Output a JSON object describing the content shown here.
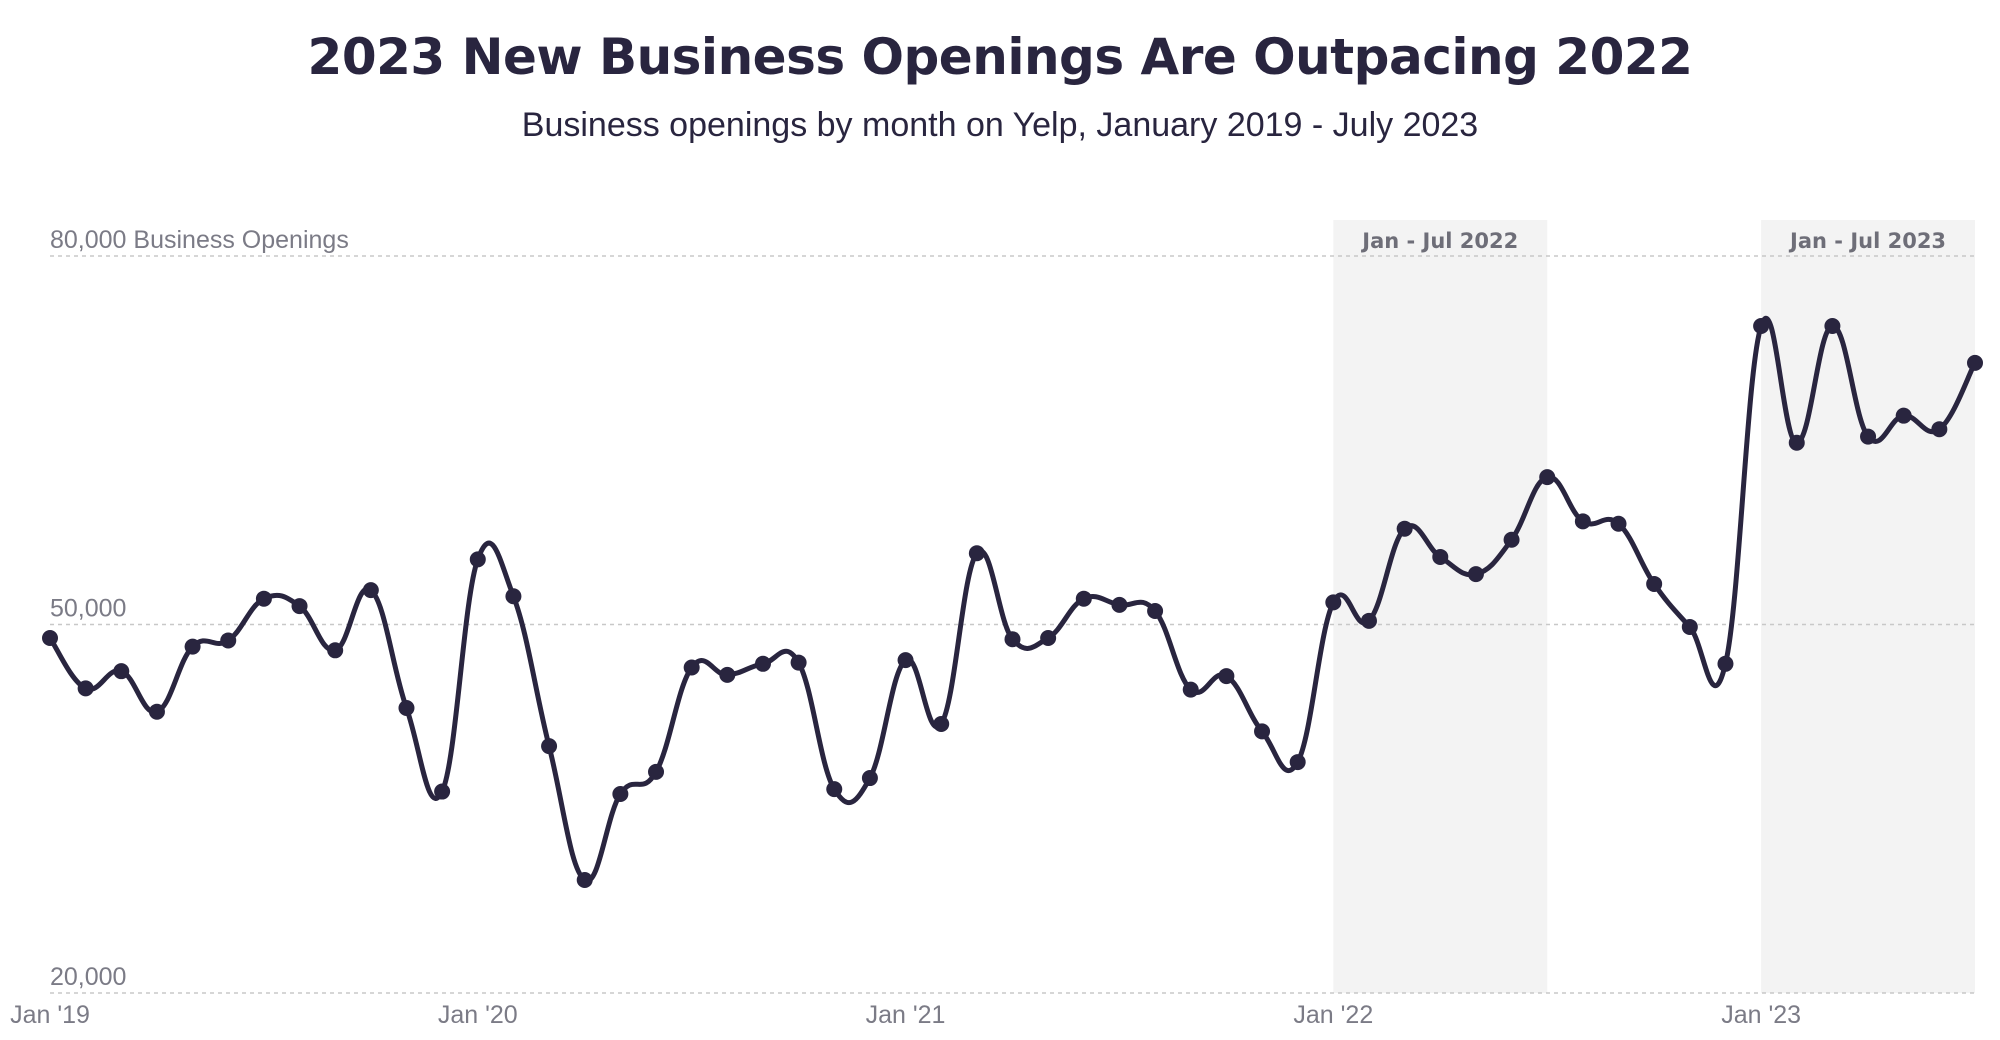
{
  "header": {
    "title": "2023 New Business Openings Are Outpacing 2022",
    "subtitle": "Business openings by month on Yelp, January 2019 - July 2023"
  },
  "colors": {
    "line": "#29253f",
    "band": "#f3f3f3",
    "grid": "#c8c8c8",
    "tick_text": "#7b7b86"
  },
  "chart_data": {
    "type": "line",
    "title": "2023 New Business Openings Are Outpacing 2022",
    "subtitle": "Business openings by month on Yelp, January 2019 - July 2023",
    "ylim": [
      20000,
      80000
    ],
    "y_ticks": [
      {
        "value": 80000,
        "label": "80,000 Business Openings"
      },
      {
        "value": 50000,
        "label": "50,000"
      },
      {
        "value": 20000,
        "label": "20,000"
      }
    ],
    "x_ticks": [
      {
        "index": 0,
        "label": "Jan '19"
      },
      {
        "index": 12,
        "label": "Jan '20"
      },
      {
        "index": 24,
        "label": "Jan '21"
      },
      {
        "index": 36,
        "label": "Jan '22"
      },
      {
        "index": 48,
        "label": "Jan '23"
      }
    ],
    "grid": true,
    "highlight_bands": [
      {
        "start_index": 36,
        "end_index": 42,
        "label": "Jan - Jul 2022"
      },
      {
        "start_index": 48,
        "end_index": 54,
        "label": "Jan - Jul 2023"
      }
    ],
    "x": [
      "2019-01",
      "2019-02",
      "2019-03",
      "2019-04",
      "2019-05",
      "2019-06",
      "2019-07",
      "2019-08",
      "2019-09",
      "2019-10",
      "2019-11",
      "2019-12",
      "2020-01",
      "2020-02",
      "2020-03",
      "2020-04",
      "2020-05",
      "2020-06",
      "2020-07",
      "2020-08",
      "2020-09",
      "2020-10",
      "2020-11",
      "2020-12",
      "2021-01",
      "2021-02",
      "2021-03",
      "2021-04",
      "2021-05",
      "2021-06",
      "2021-07",
      "2021-08",
      "2021-09",
      "2021-10",
      "2021-11",
      "2021-12",
      "2022-01",
      "2022-02",
      "2022-03",
      "2022-04",
      "2022-05",
      "2022-06",
      "2022-07",
      "2022-08",
      "2022-09",
      "2022-10",
      "2022-11",
      "2022-12",
      "2023-01",
      "2023-02",
      "2023-03",
      "2023-04",
      "2023-05",
      "2023-06",
      "2023-07"
    ],
    "series": [
      {
        "values": [
          48900,
          44800,
          46200,
          42900,
          48200,
          48700,
          52100,
          51500,
          47900,
          52800,
          43200,
          36400,
          55300,
          52300,
          40100,
          29200,
          36200,
          38000,
          46500,
          45900,
          46800,
          46900,
          36600,
          37500,
          47100,
          41900,
          55800,
          48800,
          48900,
          52100,
          51600,
          51100,
          44700,
          45800,
          41300,
          38800,
          51800,
          50300,
          57800,
          55500,
          54100,
          56900,
          62000,
          58400,
          58200,
          53300,
          49800,
          46800,
          74300,
          64800,
          74300,
          65300,
          67000,
          65900,
          71300
        ]
      }
    ]
  }
}
